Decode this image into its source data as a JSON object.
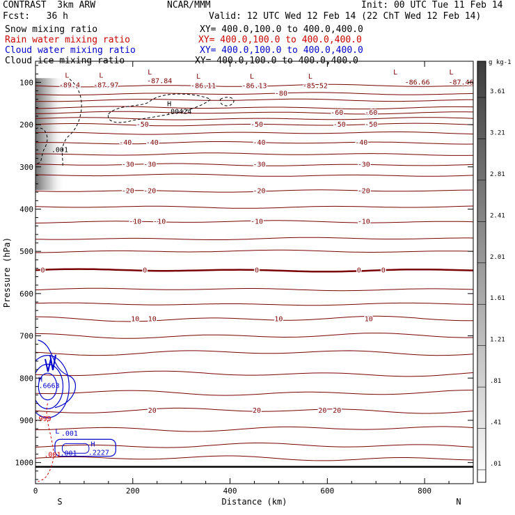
{
  "header": {
    "model": "CONTRAST  3km ARW",
    "org": "NCAR/MMM",
    "init": "Init: 00 UTC Tue 11 Feb 14",
    "fcst": "Fcst:   36 h",
    "valid": "Valid: 12 UTC Wed 12 Feb 14 (22 ChT Wed 12 Feb 14)"
  },
  "legend_rows": [
    {
      "name": "Snow mixing ratio",
      "xy": "XY= 400.0,100.0 to 400.0,400.0",
      "color": "#000000"
    },
    {
      "name": "Rain water mixing ratio",
      "xy": "XY= 400.0,100.0 to 400.0,400.0",
      "color": "#cc0000"
    },
    {
      "name": "Cloud water mixing ratio",
      "xy": "XY= 400.0,100.0 to 400.0,400.0",
      "color": "#0000cc"
    },
    {
      "name": "Cloud ice mixing ratio",
      "xy": "XY= 400.0,100.0 to 400.0,400.0",
      "color": "#000000"
    }
  ],
  "colors": {
    "temperature": "#7a0000",
    "rain": "#cc0000",
    "cloud_water": "#0000cc",
    "cloud_ice": "#000000",
    "frame": "#000000"
  },
  "chart_data": {
    "type": "cross-section",
    "xlabel": "Distance (km)",
    "ylabel": "Pressure (hPa)",
    "xlim": [
      0,
      900
    ],
    "ylim": [
      1050,
      50
    ],
    "x_ticks": [
      0,
      200,
      400,
      600,
      800
    ],
    "y_ticks": [
      100,
      200,
      300,
      400,
      500,
      600,
      700,
      800,
      900,
      1000
    ],
    "x_end_labels": {
      "left": "S",
      "right": "N"
    },
    "colorbar": {
      "unit": "g kg-1",
      "labels": [
        ".01",
        ".41",
        ".81",
        "1.21",
        "1.61",
        "2.01",
        "2.41",
        "2.81",
        "3.21",
        "3.61"
      ]
    },
    "temperature_isotherms": [
      {
        "label": "-80",
        "p": 127,
        "labels_at": [
          505
        ]
      },
      {
        "label": "-60",
        "p": 172,
        "labels_at": [
          620,
          690
        ]
      },
      {
        "label": "-50",
        "p": 200,
        "labels_at": [
          220,
          455,
          625,
          690
        ]
      },
      {
        "label": "-40",
        "p": 243,
        "labels_at": [
          185,
          240,
          460,
          670
        ]
      },
      {
        "label": "-30",
        "p": 295,
        "labels_at": [
          190,
          235,
          460,
          675
        ]
      },
      {
        "label": "-20",
        "p": 357,
        "labels_at": [
          190,
          235,
          460,
          675
        ]
      },
      {
        "label": "-10",
        "p": 430,
        "labels_at": [
          205,
          255,
          455,
          675
        ]
      },
      {
        "label": "0",
        "p": 545,
        "labels_at": [
          15,
          225,
          455,
          665,
          715
        ]
      },
      {
        "label": "10",
        "p": 660,
        "labels_at": [
          205,
          240,
          500,
          685
        ]
      },
      {
        "label": "20",
        "p": 877,
        "labels_at": [
          240,
          455,
          590,
          620
        ]
      }
    ],
    "extra_isotherms_p": [
      108,
      142,
      160,
      186,
      220,
      270,
      320,
      395,
      470,
      500,
      590,
      625,
      700,
      740,
      790,
      835,
      920,
      960,
      990
    ],
    "surface_p": 1010,
    "minima_labels": [
      {
        "label": "-89.4",
        "x": 70,
        "p": 105
      },
      {
        "label": "-87.97",
        "x": 145,
        "p": 105
      },
      {
        "label": "-87.84",
        "x": 255,
        "p": 95
      },
      {
        "label": "-86.11",
        "x": 345,
        "p": 107
      },
      {
        "label": "-86.13",
        "x": 450,
        "p": 107
      },
      {
        "label": "-85.52",
        "x": 575,
        "p": 107
      },
      {
        "label": "-86.66",
        "x": 785,
        "p": 99
      },
      {
        "label": "-87.46",
        "x": 875,
        "p": 99
      }
    ],
    "minima_markers": [
      {
        "label": "L",
        "x": 65,
        "p": 82
      },
      {
        "label": "L",
        "x": 135,
        "p": 82
      },
      {
        "label": "L",
        "x": 235,
        "p": 75
      },
      {
        "label": "L",
        "x": 335,
        "p": 85
      },
      {
        "label": "L",
        "x": 445,
        "p": 85
      },
      {
        "label": "L",
        "x": 565,
        "p": 85
      },
      {
        "label": "L",
        "x": 740,
        "p": 75
      },
      {
        "label": "L",
        "x": 855,
        "p": 75
      }
    ],
    "cloud_ice_labels": [
      {
        "label": "H",
        "x": 275,
        "p": 150
      },
      {
        "label": ".00424",
        "x": 295,
        "p": 168
      },
      {
        "label": ".001",
        "x": 50,
        "p": 258
      }
    ],
    "cloud_water_labels": [
      {
        "label": "H",
        "x": 10,
        "p": 802
      },
      {
        "label": ".6663",
        "x": 28,
        "p": 817
      },
      {
        "label": ".001",
        "x": 70,
        "p": 930
      },
      {
        "label": "H",
        "x": 118,
        "p": 955
      },
      {
        "label": ".2227",
        "x": 130,
        "p": 975
      },
      {
        "label": ".001",
        "x": 68,
        "p": 977
      },
      {
        "label": "L",
        "x": 45,
        "p": 925
      }
    ],
    "rain_labels": [
      {
        "label": ".999",
        "x": 15,
        "p": 895
      },
      {
        "label": ".001",
        "x": 35,
        "p": 980
      }
    ]
  }
}
